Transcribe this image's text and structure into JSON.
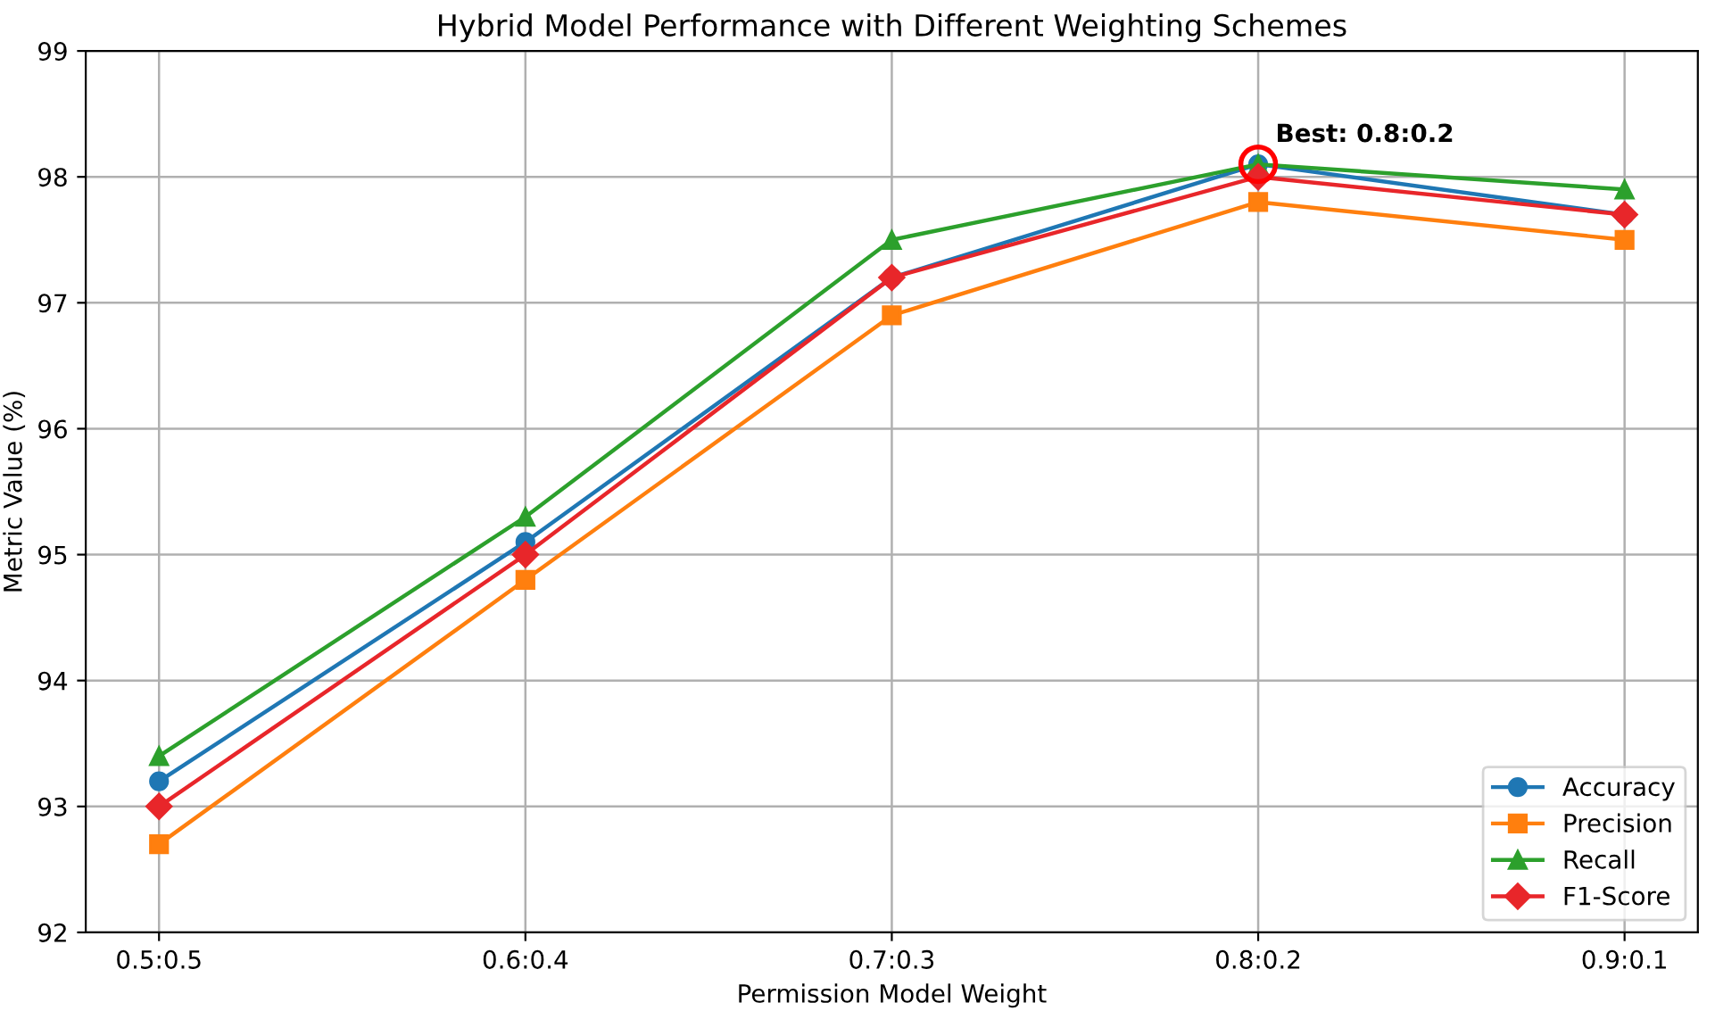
{
  "chart_data": {
    "type": "line",
    "title": "Hybrid Model Performance with Different Weighting Schemes",
    "xlabel": "Permission Model Weight",
    "ylabel": "Metric Value (%)",
    "categories": [
      "0.5:0.5",
      "0.6:0.4",
      "0.7:0.3",
      "0.8:0.2",
      "0.9:0.1"
    ],
    "series": [
      {
        "name": "Accuracy",
        "color": "#1f77b4",
        "marker": "circle",
        "values": [
          93.2,
          95.1,
          97.2,
          98.1,
          97.7
        ]
      },
      {
        "name": "Precision",
        "color": "#ff7f0e",
        "marker": "square",
        "values": [
          92.7,
          94.8,
          96.9,
          97.8,
          97.5
        ]
      },
      {
        "name": "Recall",
        "color": "#2ca02c",
        "marker": "triangle",
        "values": [
          93.4,
          95.3,
          97.5,
          98.1,
          97.9
        ]
      },
      {
        "name": "F1-Score",
        "color": "#e8262a",
        "marker": "diamond",
        "values": [
          93.0,
          95.0,
          97.2,
          98.0,
          97.7
        ]
      }
    ],
    "annotations": [
      {
        "text": "Best: 0.8:0.2",
        "x": "0.8:0.2",
        "y": 98.1
      }
    ],
    "ylim": [
      92,
      99
    ],
    "yticks": [
      92,
      93,
      94,
      95,
      96,
      97,
      98,
      99
    ],
    "grid": true,
    "legend": "bottom right",
    "line_style": "solid"
  }
}
